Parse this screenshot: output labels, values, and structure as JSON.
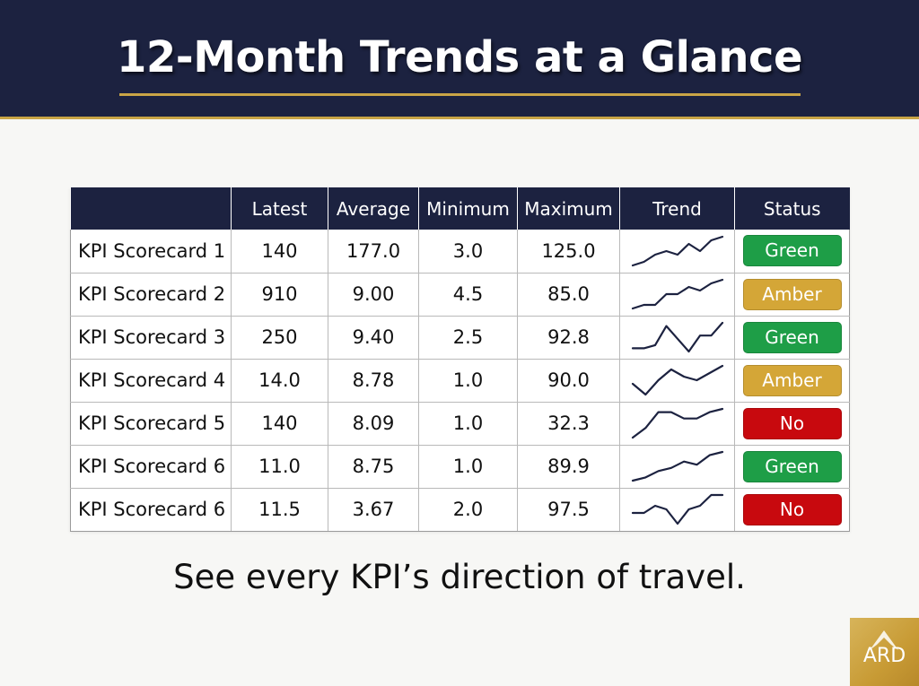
{
  "header": {
    "title": "12-Month Trends at a Glance"
  },
  "table": {
    "columns": [
      "",
      "Latest",
      "Average",
      "Minimum",
      "Maximum",
      "Trend",
      "Status"
    ],
    "rows": [
      {
        "name": "KPI Scorecard 1",
        "latest": "140",
        "average": "177.0",
        "minimum": "3.0",
        "maximum": "125.0",
        "trend": [
          2,
          3,
          5,
          6,
          5,
          8,
          6,
          9,
          10
        ],
        "status": "Green"
      },
      {
        "name": "KPI Scorecard 2",
        "latest": "910",
        "average": "9.00",
        "minimum": "4.5",
        "maximum": "85.0",
        "trend": [
          1,
          2,
          2,
          5,
          5,
          7,
          6,
          8,
          9
        ],
        "status": "Amber"
      },
      {
        "name": "KPI Scorecard 3",
        "latest": "250",
        "average": "9.40",
        "minimum": "2.5",
        "maximum": "92.8",
        "trend": [
          2,
          2,
          3,
          9,
          5,
          1,
          6,
          6,
          10
        ],
        "status": "Green"
      },
      {
        "name": "KPI Scorecard 4",
        "latest": "14.0",
        "average": "8.78",
        "minimum": "1.0",
        "maximum": "90.0",
        "trend": [
          4,
          1,
          5,
          8,
          6,
          5,
          7,
          9
        ],
        "status": "Amber"
      },
      {
        "name": "KPI Scorecard 5",
        "latest": "140",
        "average": "8.09",
        "minimum": "1.0",
        "maximum": "32.3",
        "trend": [
          1,
          4,
          9,
          9,
          7,
          7,
          9,
          10
        ],
        "status": "No"
      },
      {
        "name": "KPI Scorecard 6",
        "latest": "11.0",
        "average": "8.75",
        "minimum": "1.0",
        "maximum": "89.9",
        "trend": [
          1,
          2,
          4,
          5,
          7,
          6,
          9,
          10
        ],
        "status": "Green"
      },
      {
        "name": "KPI Scorecard 6",
        "latest": "11.5",
        "average": "3.67",
        "minimum": "2.0",
        "maximum": "97.5",
        "trend": [
          4,
          4,
          6,
          5,
          1,
          5,
          6,
          9,
          9
        ],
        "status": "No"
      }
    ]
  },
  "status_colors": {
    "Green": "#1e9e47",
    "Amber": "#d4a637",
    "No": "#c8090e"
  },
  "tagline": "See every KPI’s direction of travel.",
  "logo": {
    "text": "ARD"
  },
  "colors": {
    "navy": "#1c2240",
    "gold": "#c9a546",
    "spark": "#1c2240"
  }
}
